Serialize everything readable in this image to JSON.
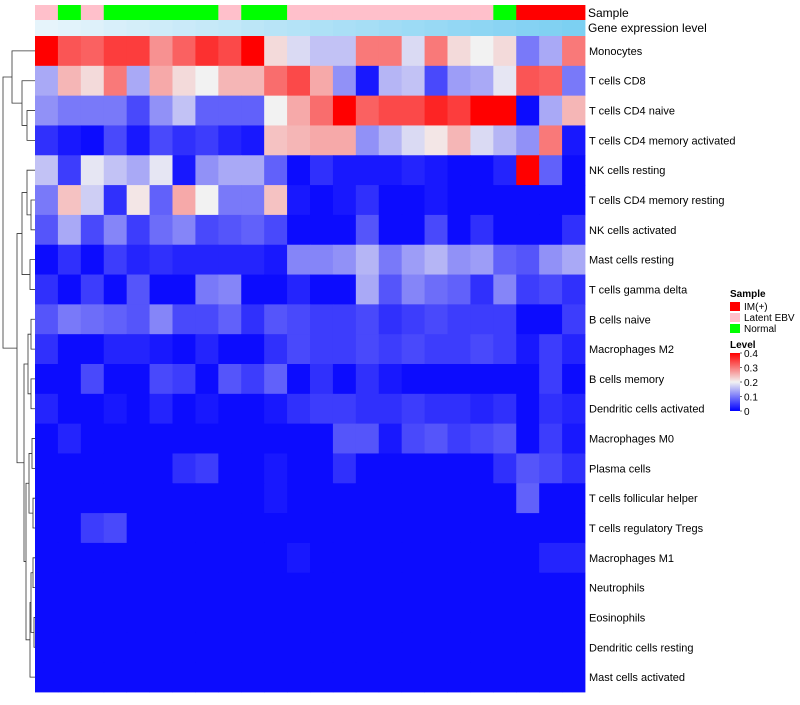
{
  "chart_data": {
    "type": "heatmap",
    "annotation_track_labels": [
      "Sample",
      "Gene expression level"
    ],
    "rows": [
      "Monocytes",
      "T cells CD8",
      "T cells CD4 naive",
      "T cells CD4 memory activated",
      "NK cells resting",
      "T cells CD4 memory resting",
      "NK cells activated",
      "Mast cells resting",
      "T cells gamma delta",
      "B cells naive",
      "Macrophages M2",
      "B cells memory",
      "Dendritic cells activated",
      "Macrophages M0",
      "Plasma cells",
      "T cells follicular helper",
      "T cells regulatory  Tregs",
      "Macrophages M1",
      "Neutrophils",
      "Eosinophils",
      "Dendritic cells resting",
      "Mast cells activated"
    ],
    "sample_groups": [
      "Latent EBV",
      "Normal",
      "Latent EBV",
      "Normal",
      "Normal",
      "Normal",
      "Normal",
      "Normal",
      "Latent EBV",
      "Normal",
      "Normal",
      "Latent EBV",
      "Latent EBV",
      "Latent EBV",
      "Latent EBV",
      "Latent EBV",
      "Latent EBV",
      "Latent EBV",
      "Latent EBV",
      "Latent EBV",
      "Normal",
      "IM(+)",
      "IM(+)",
      "IM(+)"
    ],
    "expression_level": [
      0.0,
      0.03,
      0.06,
      0.1,
      0.13,
      0.17,
      0.2,
      0.23,
      0.26,
      0.3,
      0.33,
      0.36,
      0.4,
      0.43,
      0.46,
      0.5,
      0.53,
      0.56,
      0.6,
      0.63,
      0.66,
      0.7,
      0.73,
      0.76
    ],
    "values": [
      [
        0.4,
        0.33,
        0.32,
        0.35,
        0.35,
        0.28,
        0.32,
        0.36,
        0.34,
        0.4,
        0.22,
        0.18,
        0.16,
        0.16,
        0.3,
        0.3,
        0.18,
        0.3,
        0.22,
        0.2,
        0.22,
        0.1,
        0.14,
        0.3
      ],
      [
        0.14,
        0.25,
        0.22,
        0.3,
        0.14,
        0.26,
        0.22,
        0.2,
        0.25,
        0.25,
        0.31,
        0.34,
        0.26,
        0.12,
        0.02,
        0.15,
        0.16,
        0.06,
        0.13,
        0.14,
        0.19,
        0.33,
        0.32,
        0.1
      ],
      [
        0.12,
        0.1,
        0.1,
        0.1,
        0.06,
        0.12,
        0.16,
        0.08,
        0.08,
        0.08,
        0.2,
        0.26,
        0.31,
        0.4,
        0.32,
        0.34,
        0.34,
        0.37,
        0.35,
        0.4,
        0.4,
        0.01,
        0.14,
        0.25
      ],
      [
        0.04,
        0.02,
        0.01,
        0.06,
        0.02,
        0.06,
        0.04,
        0.05,
        0.03,
        0.02,
        0.24,
        0.25,
        0.26,
        0.26,
        0.12,
        0.15,
        0.18,
        0.21,
        0.25,
        0.18,
        0.15,
        0.12,
        0.3,
        0.02
      ],
      [
        0.16,
        0.05,
        0.19,
        0.16,
        0.14,
        0.19,
        0.02,
        0.12,
        0.14,
        0.14,
        0.08,
        0.01,
        0.04,
        0.02,
        0.02,
        0.02,
        0.03,
        0.02,
        0.01,
        0.01,
        0.03,
        0.4,
        0.08,
        0.01
      ],
      [
        0.1,
        0.24,
        0.17,
        0.04,
        0.21,
        0.08,
        0.26,
        0.2,
        0.1,
        0.1,
        0.24,
        0.02,
        0.01,
        0.02,
        0.04,
        0.01,
        0.01,
        0.02,
        0.01,
        0.01,
        0.01,
        0.01,
        0.01,
        0.01
      ],
      [
        0.07,
        0.14,
        0.06,
        0.11,
        0.05,
        0.09,
        0.11,
        0.06,
        0.07,
        0.08,
        0.06,
        0.01,
        0.01,
        0.01,
        0.07,
        0.01,
        0.01,
        0.06,
        0.01,
        0.04,
        0.01,
        0.01,
        0.01,
        0.04
      ],
      [
        0.01,
        0.04,
        0.01,
        0.05,
        0.03,
        0.04,
        0.03,
        0.03,
        0.03,
        0.03,
        0.02,
        0.11,
        0.11,
        0.12,
        0.15,
        0.1,
        0.13,
        0.15,
        0.12,
        0.13,
        0.08,
        0.07,
        0.12,
        0.14
      ],
      [
        0.04,
        0.01,
        0.05,
        0.01,
        0.07,
        0.01,
        0.01,
        0.1,
        0.11,
        0.01,
        0.01,
        0.03,
        0.01,
        0.01,
        0.14,
        0.07,
        0.11,
        0.09,
        0.08,
        0.04,
        0.11,
        0.05,
        0.06,
        0.04
      ],
      [
        0.07,
        0.1,
        0.09,
        0.08,
        0.07,
        0.11,
        0.06,
        0.06,
        0.08,
        0.04,
        0.07,
        0.06,
        0.05,
        0.05,
        0.06,
        0.04,
        0.05,
        0.06,
        0.05,
        0.05,
        0.05,
        0.01,
        0.01,
        0.05
      ],
      [
        0.04,
        0.01,
        0.01,
        0.03,
        0.03,
        0.02,
        0.01,
        0.03,
        0.01,
        0.01,
        0.04,
        0.06,
        0.05,
        0.05,
        0.06,
        0.05,
        0.06,
        0.05,
        0.05,
        0.06,
        0.05,
        0.02,
        0.05,
        0.03
      ],
      [
        0.01,
        0.01,
        0.06,
        0.01,
        0.01,
        0.06,
        0.05,
        0.01,
        0.07,
        0.05,
        0.08,
        0.01,
        0.04,
        0.01,
        0.04,
        0.02,
        0.01,
        0.01,
        0.01,
        0.01,
        0.01,
        0.01,
        0.05,
        0.01
      ],
      [
        0.03,
        0.01,
        0.01,
        0.02,
        0.01,
        0.03,
        0.01,
        0.02,
        0.01,
        0.01,
        0.02,
        0.04,
        0.05,
        0.05,
        0.04,
        0.04,
        0.05,
        0.04,
        0.04,
        0.03,
        0.04,
        0.01,
        0.04,
        0.03
      ],
      [
        0.01,
        0.03,
        0.01,
        0.01,
        0.01,
        0.01,
        0.01,
        0.01,
        0.01,
        0.01,
        0.01,
        0.01,
        0.01,
        0.07,
        0.07,
        0.02,
        0.06,
        0.07,
        0.05,
        0.06,
        0.07,
        0.01,
        0.05,
        0.02
      ],
      [
        0.01,
        0.01,
        0.01,
        0.01,
        0.01,
        0.01,
        0.04,
        0.05,
        0.01,
        0.01,
        0.02,
        0.01,
        0.01,
        0.04,
        0.01,
        0.01,
        0.01,
        0.01,
        0.01,
        0.01,
        0.04,
        0.07,
        0.06,
        0.04
      ],
      [
        0.01,
        0.01,
        0.01,
        0.01,
        0.01,
        0.01,
        0.01,
        0.01,
        0.01,
        0.01,
        0.02,
        0.01,
        0.01,
        0.01,
        0.01,
        0.01,
        0.01,
        0.01,
        0.01,
        0.01,
        0.01,
        0.08,
        0.01,
        0.01
      ],
      [
        0.01,
        0.01,
        0.05,
        0.06,
        0.01,
        0.01,
        0.01,
        0.01,
        0.01,
        0.01,
        0.01,
        0.01,
        0.01,
        0.01,
        0.01,
        0.01,
        0.01,
        0.01,
        0.01,
        0.01,
        0.01,
        0.01,
        0.01,
        0.01
      ],
      [
        0.01,
        0.01,
        0.01,
        0.01,
        0.01,
        0.01,
        0.01,
        0.01,
        0.01,
        0.01,
        0.01,
        0.02,
        0.01,
        0.01,
        0.01,
        0.01,
        0.01,
        0.01,
        0.01,
        0.01,
        0.01,
        0.01,
        0.03,
        0.03
      ],
      [
        0.01,
        0.01,
        0.01,
        0.01,
        0.01,
        0.01,
        0.01,
        0.01,
        0.01,
        0.01,
        0.01,
        0.01,
        0.01,
        0.01,
        0.01,
        0.01,
        0.01,
        0.01,
        0.01,
        0.01,
        0.01,
        0.01,
        0.01,
        0.01
      ],
      [
        0.01,
        0.01,
        0.01,
        0.01,
        0.01,
        0.01,
        0.01,
        0.01,
        0.01,
        0.01,
        0.01,
        0.01,
        0.01,
        0.01,
        0.01,
        0.01,
        0.01,
        0.01,
        0.01,
        0.01,
        0.01,
        0.01,
        0.01,
        0.01
      ],
      [
        0.01,
        0.01,
        0.01,
        0.01,
        0.01,
        0.01,
        0.01,
        0.01,
        0.01,
        0.01,
        0.01,
        0.01,
        0.01,
        0.01,
        0.01,
        0.01,
        0.01,
        0.01,
        0.01,
        0.01,
        0.01,
        0.01,
        0.01,
        0.01
      ],
      [
        0.01,
        0.01,
        0.01,
        0.01,
        0.01,
        0.01,
        0.01,
        0.01,
        0.01,
        0.01,
        0.01,
        0.01,
        0.01,
        0.01,
        0.01,
        0.01,
        0.01,
        0.01,
        0.01,
        0.01,
        0.01,
        0.01,
        0.01,
        0.01
      ]
    ],
    "color_scale": {
      "domain": [
        0,
        0.2,
        0.4
      ],
      "colors": [
        "#0000ff",
        "#f2f2f2",
        "#ff0000"
      ]
    },
    "sample_colors": {
      "IM(+)": "#ff0000",
      "Latent EBV": "#ffc0cb",
      "Normal": "#00ff00"
    },
    "expression_colors": [
      "#e6f4fb",
      "#5bc4ef"
    ],
    "legend": {
      "sample_title": "Sample",
      "sample_items": [
        "IM(+)",
        "Latent EBV",
        "Normal"
      ],
      "level_title": "Level",
      "level_ticks": [
        0.4,
        0.3,
        0.2,
        0.1,
        0
      ]
    },
    "row_dendrogram": true,
    "legend_position": "right"
  }
}
